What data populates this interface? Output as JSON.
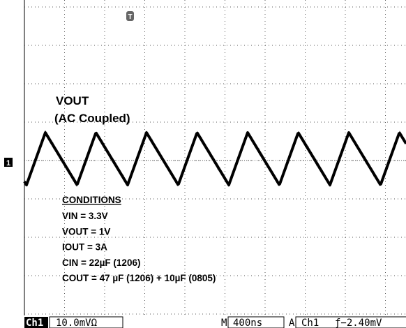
{
  "labels": {
    "trace": "VOUT",
    "coupling": "(AC Coupled)"
  },
  "conditions": {
    "heading": "CONDITIONS",
    "lines": [
      "VIN = 3.3V",
      "VOUT = 1V",
      "IOUT = 3A",
      "CIN = 22µF (1206)",
      "COUT = 47 µF (1206) + 10µF (0805)"
    ]
  },
  "markers": {
    "channel": "1",
    "trigger": "T"
  },
  "status_bar": {
    "channel": "Ch1",
    "scale": "10.0mVΩ",
    "m": "M",
    "timebase": "400ns",
    "a": "A",
    "trigger_source": "Ch1",
    "trigger_level": "ƒ−2.40mV"
  }
}
